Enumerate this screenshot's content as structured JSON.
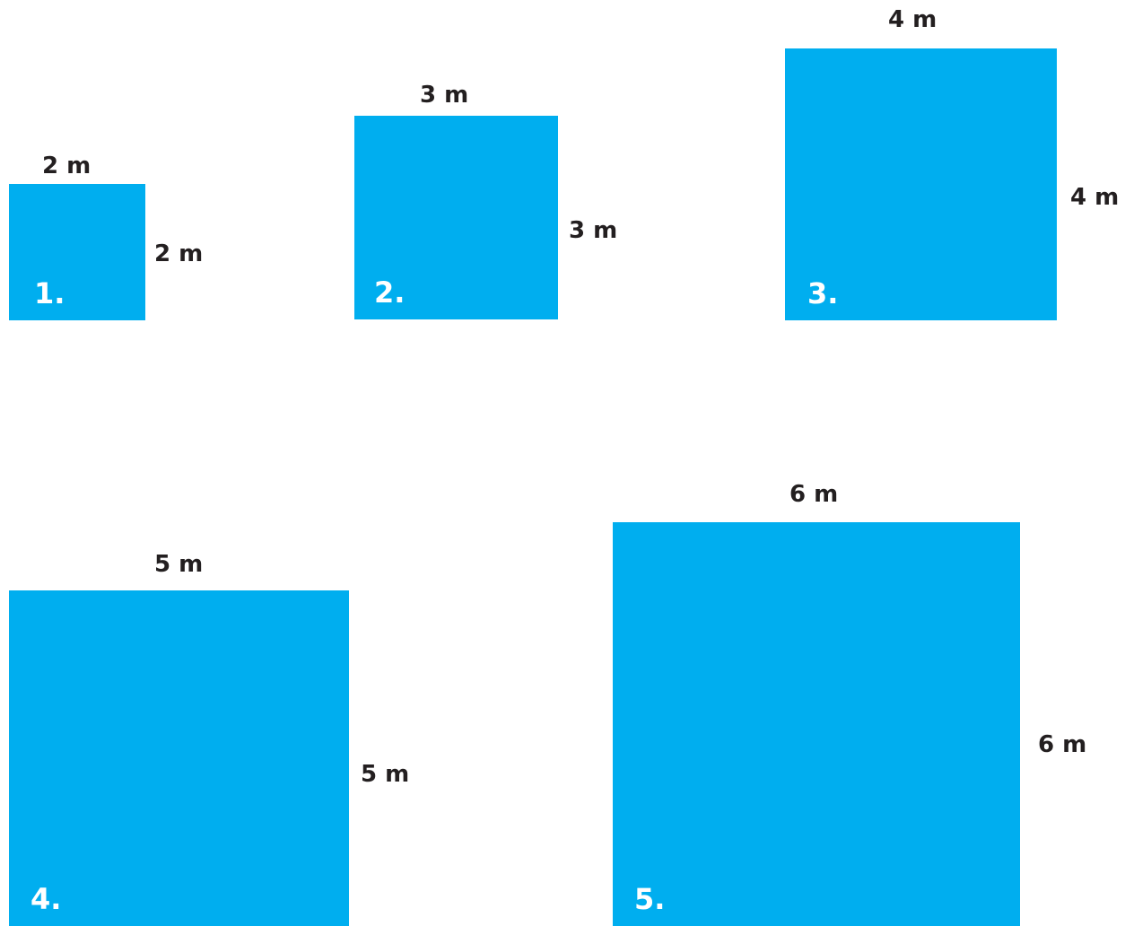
{
  "squares": [
    {
      "number": "1.",
      "width": "2 m",
      "height": "2 m"
    },
    {
      "number": "2.",
      "width": "3 m",
      "height": "3 m"
    },
    {
      "number": "3.",
      "width": "4 m",
      "height": "4 m"
    },
    {
      "number": "4.",
      "width": "5 m",
      "height": "5 m"
    },
    {
      "number": "5.",
      "width": "6 m",
      "height": "6 m"
    }
  ],
  "colors": {
    "square_fill": "#00aeef",
    "number_text": "#ffffff",
    "label_text": "#231f20"
  }
}
